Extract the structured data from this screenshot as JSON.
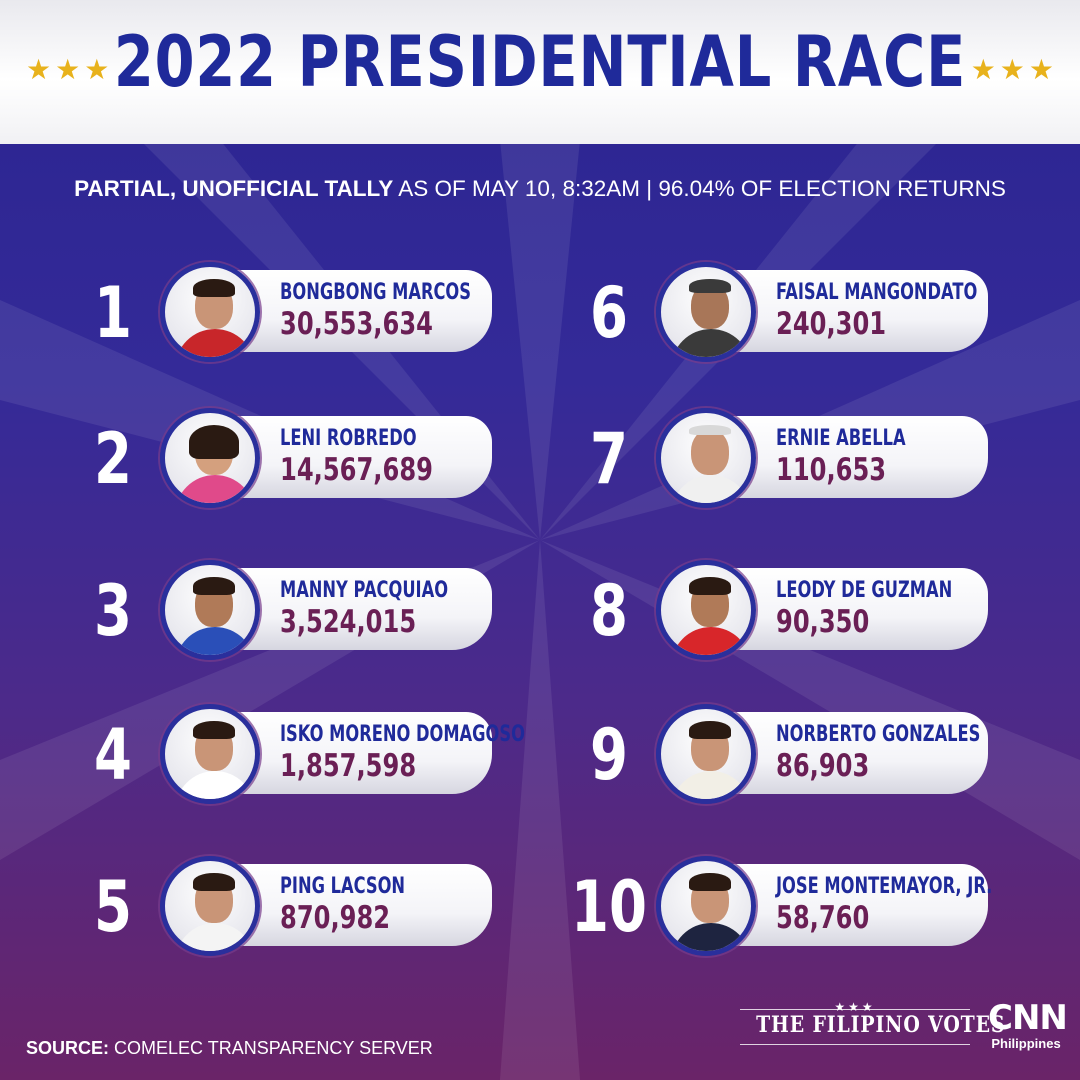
{
  "header": {
    "title": "2022 PRESIDENTIAL RACE",
    "stars_left": "★★★",
    "stars_right": "★★★"
  },
  "subtitle": {
    "bold": "PARTIAL, UNOFFICIAL TALLY",
    "rest": " AS OF MAY 10, 8:32AM | 96.04% OF ELECTION RETURNS"
  },
  "candidates": [
    {
      "rank": "1",
      "name": "BONGBONG MARCOS",
      "votes": "30,553,634"
    },
    {
      "rank": "2",
      "name": "LENI ROBREDO",
      "votes": "14,567,689"
    },
    {
      "rank": "3",
      "name": "MANNY PACQUIAO",
      "votes": "3,524,015"
    },
    {
      "rank": "4",
      "name": "ISKO MORENO DOMAGOSO",
      "votes": "1,857,598"
    },
    {
      "rank": "5",
      "name": "PING LACSON",
      "votes": "870,982"
    },
    {
      "rank": "6",
      "name": "FAISAL MANGONDATO",
      "votes": "240,301"
    },
    {
      "rank": "7",
      "name": "ERNIE ABELLA",
      "votes": "110,653"
    },
    {
      "rank": "8",
      "name": "LEODY DE GUZMAN",
      "votes": "90,350"
    },
    {
      "rank": "9",
      "name": "NORBERTO GONZALES",
      "votes": "86,903"
    },
    {
      "rank": "10",
      "name": "JOSE MONTEMAYOR, JR.",
      "votes": "58,760"
    }
  ],
  "footer": {
    "source_label": "SOURCE:",
    "source_text": " COMELEC TRANSPARENCY SERVER",
    "brand_stars": "★★★",
    "brand_text": "THE FILIPINO VOTES",
    "cnn_logo": "CNN",
    "cnn_sub": "Philippines"
  },
  "colors": {
    "title_blue": "#1f2a9a",
    "votes_maroon": "#6a1f55",
    "star_gold": "#e8b21c",
    "bg_top": "#2a2490",
    "bg_bottom": "#6a2468"
  }
}
